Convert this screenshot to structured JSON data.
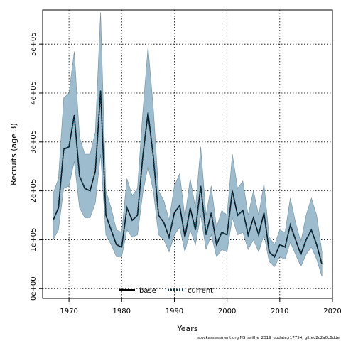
{
  "chart_data": {
    "type": "line",
    "xlabel": "Years",
    "ylabel": "Recruits (age 3)",
    "xlim": [
      1965,
      2020
    ],
    "ylim": [
      -20000,
      570000
    ],
    "x_ticks": [
      1970,
      1980,
      1990,
      2000,
      2010,
      2020
    ],
    "y_ticks": [
      0,
      100000,
      200000,
      300000,
      400000,
      500000
    ],
    "y_tick_labels": [
      "0e+00",
      "1e+05",
      "2e+05",
      "3e+05",
      "4e+05",
      "5e+05"
    ],
    "grid": true,
    "legend_placement": "bottom",
    "colors": {
      "band": "#9dbccd",
      "band_edge": "#6f8fa0",
      "current": "#0b3d52",
      "base": "#000000",
      "grid": "#000000"
    },
    "x": [
      1967,
      1968,
      1969,
      1970,
      1971,
      1972,
      1973,
      1974,
      1975,
      1976,
      1977,
      1978,
      1979,
      1980,
      1981,
      1982,
      1983,
      1984,
      1985,
      1986,
      1987,
      1988,
      1989,
      1990,
      1991,
      1992,
      1993,
      1994,
      1995,
      1996,
      1997,
      1998,
      1999,
      2000,
      2001,
      2002,
      2003,
      2004,
      2005,
      2006,
      2007,
      2008,
      2009,
      2010,
      2011,
      2012,
      2013,
      2014,
      2015,
      2016,
      2017,
      2018
    ],
    "series": [
      {
        "name": "current",
        "values": [
          140000,
          165000,
          285000,
          290000,
          355000,
          230000,
          205000,
          200000,
          240000,
          405000,
          150000,
          120000,
          90000,
          85000,
          165000,
          140000,
          150000,
          270000,
          360000,
          270000,
          150000,
          135000,
          105000,
          155000,
          170000,
          105000,
          165000,
          120000,
          210000,
          110000,
          155000,
          90000,
          115000,
          110000,
          200000,
          150000,
          160000,
          110000,
          145000,
          110000,
          155000,
          75000,
          65000,
          90000,
          85000,
          130000,
          100000,
          70000,
          100000,
          120000,
          90000,
          50000
        ],
        "lower": [
          100000,
          120000,
          205000,
          210000,
          260000,
          165000,
          145000,
          145000,
          175000,
          275000,
          110000,
          90000,
          65000,
          65000,
          120000,
          105000,
          110000,
          195000,
          250000,
          200000,
          110000,
          100000,
          75000,
          110000,
          125000,
          75000,
          120000,
          90000,
          150000,
          80000,
          110000,
          65000,
          80000,
          75000,
          145000,
          110000,
          115000,
          80000,
          100000,
          75000,
          110000,
          55000,
          45000,
          65000,
          60000,
          95000,
          70000,
          45000,
          70000,
          85000,
          60000,
          25000
        ],
        "upper": [
          195000,
          225000,
          390000,
          400000,
          485000,
          310000,
          275000,
          275000,
          320000,
          565000,
          200000,
          165000,
          120000,
          115000,
          225000,
          190000,
          205000,
          360000,
          495000,
          370000,
          200000,
          180000,
          140000,
          210000,
          235000,
          145000,
          225000,
          165000,
          290000,
          150000,
          210000,
          125000,
          160000,
          150000,
          275000,
          205000,
          220000,
          150000,
          200000,
          150000,
          215000,
          105000,
          90000,
          120000,
          115000,
          185000,
          135000,
          95000,
          150000,
          185000,
          150000,
          75000
        ]
      },
      {
        "name": "base"
      }
    ]
  },
  "footer": "stockassessment.org,NS_saithe_2019_update,r17754, git:ec2c2a0c6dde"
}
